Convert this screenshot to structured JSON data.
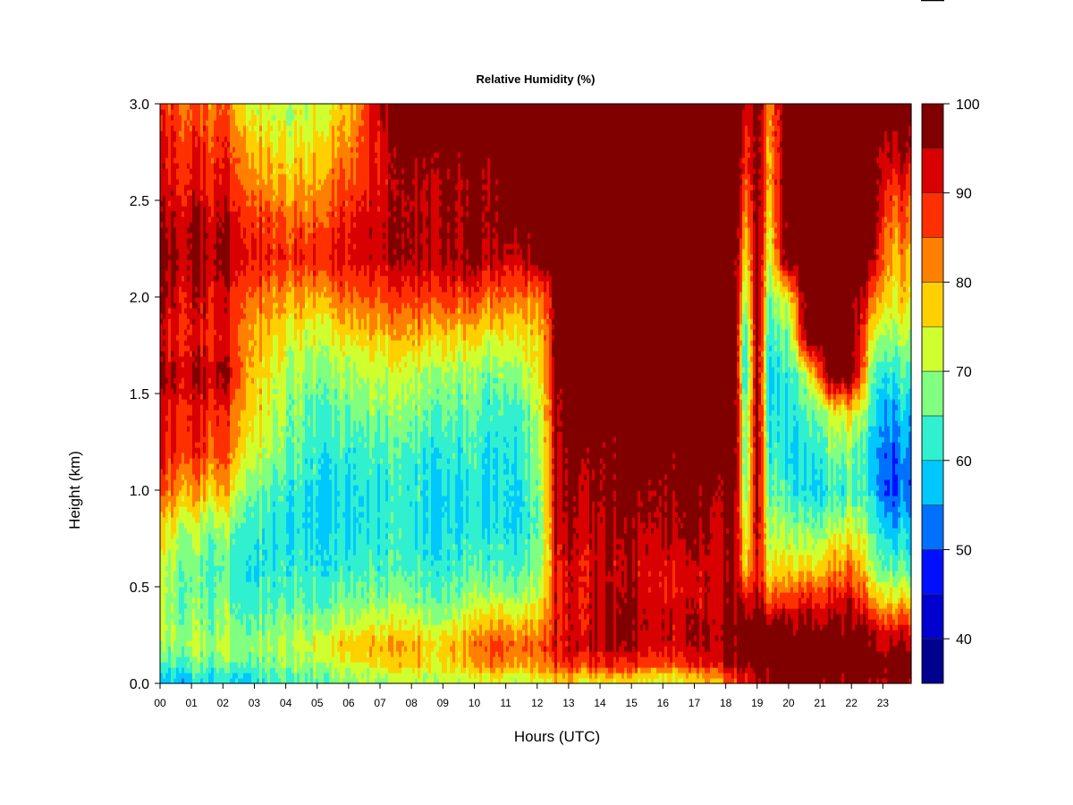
{
  "chart_data": {
    "type": "heatmap",
    "title": "Relative Humidity (%)",
    "xlabel": "Hours (UTC)",
    "ylabel": "Height (km)",
    "xlim": [
      0,
      23.9
    ],
    "ylim": [
      0,
      3.0
    ],
    "x_ticks": [
      {
        "value": 0,
        "label": "00"
      },
      {
        "value": 1,
        "label": "01"
      },
      {
        "value": 2,
        "label": "02"
      },
      {
        "value": 3,
        "label": "03"
      },
      {
        "value": 4,
        "label": "04"
      },
      {
        "value": 5,
        "label": "05"
      },
      {
        "value": 6,
        "label": "06"
      },
      {
        "value": 7,
        "label": "07"
      },
      {
        "value": 8,
        "label": "08"
      },
      {
        "value": 9,
        "label": "09"
      },
      {
        "value": 10,
        "label": "10"
      },
      {
        "value": 11,
        "label": "11"
      },
      {
        "value": 12,
        "label": "12"
      },
      {
        "value": 13,
        "label": "13"
      },
      {
        "value": 14,
        "label": "14"
      },
      {
        "value": 15,
        "label": "15"
      },
      {
        "value": 16,
        "label": "16"
      },
      {
        "value": 17,
        "label": "17"
      },
      {
        "value": 18,
        "label": "18"
      },
      {
        "value": 19,
        "label": "19"
      },
      {
        "value": 20,
        "label": "20"
      },
      {
        "value": 21,
        "label": "21"
      },
      {
        "value": 22,
        "label": "22"
      },
      {
        "value": 23,
        "label": "23"
      }
    ],
    "y_ticks": [
      {
        "value": 0.0,
        "label": "0.0"
      },
      {
        "value": 0.5,
        "label": "0.5"
      },
      {
        "value": 1.0,
        "label": "1.0"
      },
      {
        "value": 1.5,
        "label": "1.5"
      },
      {
        "value": 2.0,
        "label": "2.0"
      },
      {
        "value": 2.5,
        "label": "2.5"
      },
      {
        "value": 3.0,
        "label": "3.0"
      }
    ],
    "colorbar": {
      "levels": [
        35,
        40,
        45,
        50,
        55,
        60,
        65,
        70,
        75,
        80,
        85,
        90,
        95,
        100
      ],
      "colors": [
        "#00008F",
        "#0000CF",
        "#0010FF",
        "#0070FF",
        "#00C8FF",
        "#30F0D0",
        "#80FF80",
        "#D0FF30",
        "#FFD000",
        "#FF8000",
        "#FF3000",
        "#D80000",
        "#800000"
      ],
      "tick_labels": [
        {
          "value": 40,
          "label": "40"
        },
        {
          "value": 50,
          "label": "50"
        },
        {
          "value": 60,
          "label": "60"
        },
        {
          "value": 70,
          "label": "70"
        },
        {
          "value": 80,
          "label": "80"
        },
        {
          "value": 90,
          "label": "90"
        },
        {
          "value": 100,
          "label": "100"
        }
      ]
    },
    "z_heights_km": [
      0.03,
      0.1,
      0.2,
      0.3,
      0.45,
      0.6,
      0.8,
      1.0,
      1.2,
      1.4,
      1.6,
      1.8,
      2.0,
      2.2,
      2.4,
      2.6,
      2.8,
      3.0
    ],
    "z_profiles": [
      {
        "t": 0.0,
        "rh": [
          57,
          62,
          68,
          70,
          70,
          72,
          76,
          86,
          90,
          92,
          96,
          92,
          95,
          97,
          95,
          92,
          91,
          88
        ]
      },
      {
        "t": 1.0,
        "rh": [
          60,
          66,
          70,
          68,
          66,
          66,
          70,
          80,
          88,
          90,
          94,
          90,
          92,
          96,
          94,
          90,
          88,
          84
        ]
      },
      {
        "t": 2.0,
        "rh": [
          60,
          66,
          70,
          68,
          66,
          64,
          68,
          78,
          86,
          88,
          96,
          90,
          92,
          96,
          94,
          90,
          88,
          84
        ]
      },
      {
        "t": 3.0,
        "rh": [
          62,
          68,
          70,
          68,
          64,
          62,
          64,
          68,
          74,
          78,
          80,
          82,
          86,
          92,
          90,
          84,
          80,
          74
        ]
      },
      {
        "t": 4.0,
        "rh": [
          64,
          68,
          70,
          68,
          64,
          62,
          60,
          62,
          66,
          68,
          70,
          74,
          80,
          88,
          84,
          78,
          74,
          70
        ]
      },
      {
        "t": 5.0,
        "rh": [
          66,
          70,
          74,
          70,
          64,
          62,
          60,
          60,
          62,
          64,
          68,
          72,
          80,
          90,
          86,
          80,
          76,
          72
        ]
      },
      {
        "t": 6.0,
        "rh": [
          68,
          74,
          78,
          72,
          66,
          62,
          60,
          60,
          62,
          66,
          70,
          76,
          84,
          92,
          90,
          86,
          82,
          78
        ]
      },
      {
        "t": 7.0,
        "rh": [
          70,
          76,
          80,
          74,
          68,
          64,
          62,
          62,
          64,
          68,
          72,
          78,
          86,
          94,
          94,
          92,
          92,
          96
        ]
      },
      {
        "t": 8.0,
        "rh": [
          72,
          78,
          80,
          74,
          68,
          64,
          62,
          62,
          64,
          68,
          72,
          80,
          88,
          96,
          96,
          96,
          100,
          100
        ]
      },
      {
        "t": 9.0,
        "rh": [
          72,
          76,
          78,
          72,
          66,
          62,
          60,
          60,
          62,
          66,
          70,
          78,
          88,
          96,
          96,
          96,
          100,
          100
        ]
      },
      {
        "t": 10.0,
        "rh": [
          72,
          78,
          82,
          76,
          68,
          64,
          60,
          60,
          62,
          64,
          68,
          76,
          86,
          96,
          96,
          96,
          100,
          100
        ]
      },
      {
        "t": 10.5,
        "rh": [
          74,
          84,
          88,
          80,
          70,
          64,
          60,
          60,
          60,
          62,
          66,
          74,
          84,
          94,
          96,
          96,
          100,
          100
        ]
      },
      {
        "t": 11.5,
        "rh": [
          72,
          80,
          84,
          78,
          70,
          64,
          60,
          60,
          62,
          64,
          70,
          76,
          84,
          94,
          100,
          100,
          100,
          100
        ]
      },
      {
        "t": 12.2,
        "rh": [
          74,
          82,
          86,
          80,
          74,
          70,
          68,
          70,
          72,
          74,
          76,
          78,
          82,
          100,
          100,
          100,
          100,
          100
        ]
      },
      {
        "t": 12.6,
        "rh": [
          80,
          88,
          92,
          92,
          92,
          92,
          94,
          96,
          96,
          98,
          100,
          100,
          100,
          100,
          100,
          100,
          100,
          100
        ]
      },
      {
        "t": 13.5,
        "rh": [
          76,
          88,
          94,
          92,
          92,
          92,
          94,
          96,
          98,
          100,
          100,
          100,
          100,
          100,
          100,
          100,
          100,
          100
        ]
      },
      {
        "t": 14.5,
        "rh": [
          78,
          90,
          96,
          98,
          96,
          94,
          96,
          98,
          98,
          100,
          100,
          100,
          100,
          100,
          100,
          100,
          100,
          100
        ]
      },
      {
        "t": 15.5,
        "rh": [
          74,
          86,
          92,
          94,
          92,
          92,
          94,
          96,
          98,
          100,
          100,
          100,
          100,
          100,
          100,
          100,
          100,
          100
        ]
      },
      {
        "t": 16.5,
        "rh": [
          76,
          88,
          94,
          94,
          92,
          92,
          96,
          98,
          100,
          100,
          100,
          100,
          100,
          100,
          100,
          100,
          100,
          100
        ]
      },
      {
        "t": 17.5,
        "rh": [
          80,
          92,
          96,
          96,
          94,
          94,
          96,
          98,
          100,
          100,
          100,
          100,
          100,
          100,
          100,
          100,
          100,
          100
        ]
      },
      {
        "t": 18.3,
        "rh": [
          86,
          96,
          98,
          98,
          96,
          94,
          96,
          98,
          100,
          100,
          100,
          100,
          100,
          100,
          100,
          100,
          100,
          100
        ]
      },
      {
        "t": 18.6,
        "rh": [
          92,
          98,
          100,
          100,
          92,
          78,
          74,
          68,
          66,
          66,
          60,
          62,
          70,
          76,
          82,
          88,
          90,
          94
        ]
      },
      {
        "t": 19.0,
        "rh": [
          96,
          100,
          100,
          100,
          96,
          94,
          96,
          98,
          100,
          100,
          100,
          100,
          100,
          100,
          100,
          100,
          100,
          100
        ]
      },
      {
        "t": 19.4,
        "rh": [
          96,
          100,
          100,
          98,
          84,
          74,
          70,
          66,
          62,
          60,
          58,
          62,
          66,
          72,
          76,
          80,
          80,
          82
        ]
      },
      {
        "t": 20.0,
        "rh": [
          98,
          100,
          100,
          96,
          86,
          76,
          68,
          62,
          58,
          60,
          62,
          66,
          74,
          100,
          100,
          100,
          100,
          100
        ]
      },
      {
        "t": 20.6,
        "rh": [
          98,
          100,
          100,
          96,
          88,
          76,
          66,
          58,
          60,
          64,
          70,
          100,
          100,
          100,
          100,
          100,
          100,
          100
        ]
      },
      {
        "t": 21.3,
        "rh": [
          98,
          100,
          100,
          98,
          90,
          80,
          70,
          62,
          66,
          72,
          100,
          100,
          100,
          100,
          100,
          100,
          100,
          100
        ]
      },
      {
        "t": 22.0,
        "rh": [
          98,
          100,
          100,
          98,
          92,
          84,
          74,
          64,
          68,
          76,
          100,
          100,
          100,
          100,
          100,
          100,
          100,
          100
        ]
      },
      {
        "t": 22.7,
        "rh": [
          98,
          100,
          98,
          94,
          80,
          70,
          66,
          60,
          58,
          62,
          66,
          74,
          86,
          96,
          100,
          100,
          100,
          100
        ]
      },
      {
        "t": 23.3,
        "rh": [
          98,
          100,
          96,
          90,
          76,
          66,
          58,
          50,
          52,
          56,
          62,
          70,
          76,
          80,
          84,
          90,
          96,
          100
        ]
      },
      {
        "t": 23.9,
        "rh": [
          96,
          100,
          94,
          88,
          74,
          64,
          58,
          52,
          54,
          58,
          64,
          70,
          76,
          80,
          84,
          90,
          96,
          100
        ]
      }
    ]
  }
}
